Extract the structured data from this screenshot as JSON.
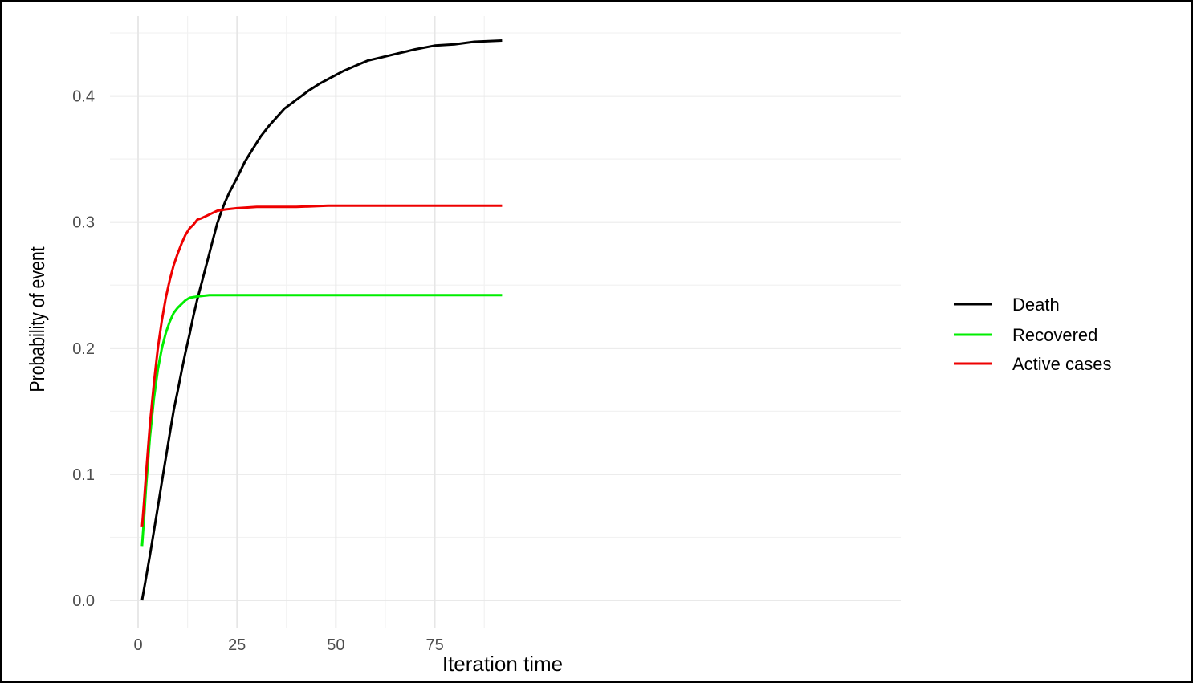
{
  "chart_data": {
    "type": "line",
    "title": "",
    "xlabel": "Iteration time",
    "ylabel": "Probability of event",
    "xlim": [
      -3,
      94
    ],
    "ylim": [
      -0.003,
      0.46
    ],
    "x_ticks": [
      0,
      25,
      50,
      75
    ],
    "x_tick_labels": [
      "0",
      "25",
      "50",
      "75"
    ],
    "y_ticks": [
      0.0,
      0.1,
      0.2,
      0.3,
      0.4
    ],
    "y_tick_labels": [
      "0.0",
      "0.1",
      "0.2",
      "0.3",
      "0.4"
    ],
    "grid": true,
    "legend_position": "right",
    "series": [
      {
        "name": "Death",
        "color": "#000000",
        "points": [
          [
            1,
            0.0
          ],
          [
            2,
            0.018
          ],
          [
            3,
            0.036
          ],
          [
            4,
            0.055
          ],
          [
            5,
            0.074
          ],
          [
            6,
            0.094
          ],
          [
            7,
            0.113
          ],
          [
            8,
            0.132
          ],
          [
            9,
            0.151
          ],
          [
            10,
            0.166
          ],
          [
            11,
            0.182
          ],
          [
            12,
            0.197
          ],
          [
            13,
            0.211
          ],
          [
            14,
            0.226
          ],
          [
            15,
            0.239
          ],
          [
            16,
            0.251
          ],
          [
            17,
            0.263
          ],
          [
            18,
            0.275
          ],
          [
            19,
            0.287
          ],
          [
            20,
            0.299
          ],
          [
            21,
            0.308
          ],
          [
            22,
            0.316
          ],
          [
            23,
            0.323
          ],
          [
            25,
            0.335
          ],
          [
            27,
            0.348
          ],
          [
            29,
            0.358
          ],
          [
            31,
            0.368
          ],
          [
            33,
            0.376
          ],
          [
            35,
            0.383
          ],
          [
            37,
            0.39
          ],
          [
            40,
            0.397
          ],
          [
            43,
            0.404
          ],
          [
            46,
            0.41
          ],
          [
            49,
            0.415
          ],
          [
            52,
            0.42
          ],
          [
            55,
            0.424
          ],
          [
            58,
            0.428
          ],
          [
            62,
            0.431
          ],
          [
            66,
            0.434
          ],
          [
            70,
            0.437
          ],
          [
            75,
            0.44
          ],
          [
            80,
            0.441
          ],
          [
            85,
            0.443
          ],
          [
            92,
            0.444
          ]
        ]
      },
      {
        "name": "Recovered",
        "color": "#00ee00",
        "points": [
          [
            1,
            0.043
          ],
          [
            1.5,
            0.065
          ],
          [
            2,
            0.09
          ],
          [
            3,
            0.13
          ],
          [
            4,
            0.16
          ],
          [
            5,
            0.183
          ],
          [
            6,
            0.2
          ],
          [
            7,
            0.212
          ],
          [
            8,
            0.221
          ],
          [
            9,
            0.228
          ],
          [
            10,
            0.232
          ],
          [
            11,
            0.235
          ],
          [
            12,
            0.238
          ],
          [
            13,
            0.24
          ],
          [
            15,
            0.241
          ],
          [
            18,
            0.242
          ],
          [
            25,
            0.242
          ],
          [
            50,
            0.242
          ],
          [
            75,
            0.242
          ],
          [
            92,
            0.242
          ]
        ]
      },
      {
        "name": "Active cases",
        "color": "#ee0000",
        "points": [
          [
            1,
            0.058
          ],
          [
            1.5,
            0.078
          ],
          [
            2,
            0.1
          ],
          [
            3,
            0.14
          ],
          [
            4,
            0.172
          ],
          [
            5,
            0.2
          ],
          [
            6,
            0.222
          ],
          [
            7,
            0.24
          ],
          [
            8,
            0.254
          ],
          [
            9,
            0.266
          ],
          [
            10,
            0.275
          ],
          [
            11,
            0.283
          ],
          [
            12,
            0.29
          ],
          [
            13,
            0.295
          ],
          [
            14,
            0.298
          ],
          [
            15,
            0.302
          ],
          [
            16,
            0.303
          ],
          [
            18,
            0.306
          ],
          [
            20,
            0.309
          ],
          [
            22,
            0.31
          ],
          [
            25,
            0.311
          ],
          [
            30,
            0.312
          ],
          [
            40,
            0.312
          ],
          [
            48,
            0.313
          ],
          [
            60,
            0.313
          ],
          [
            75,
            0.313
          ],
          [
            92,
            0.313
          ]
        ]
      }
    ]
  }
}
